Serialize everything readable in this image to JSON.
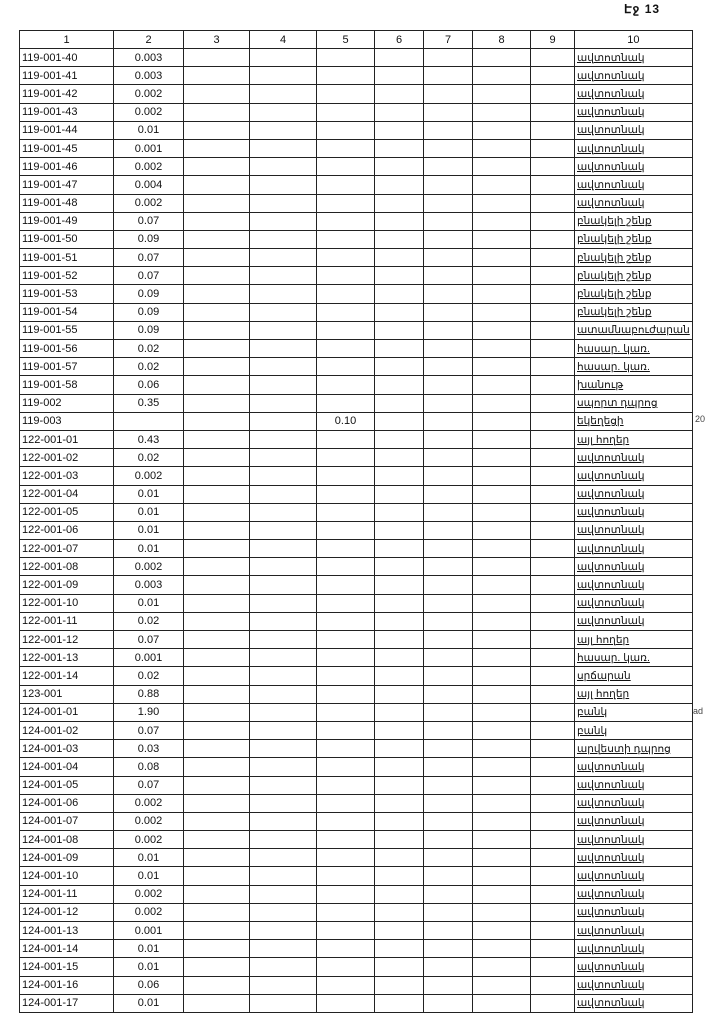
{
  "page_label": "Էջ 13",
  "margin_notes": [
    "20",
    "ad"
  ],
  "table": {
    "headers": [
      "1",
      "2",
      "3",
      "4",
      "5",
      "6",
      "7",
      "8",
      "9",
      "10"
    ],
    "rows": [
      [
        "119-001-40",
        "0.003",
        "",
        "",
        "",
        "",
        "",
        "",
        "",
        "ավտոտնակ"
      ],
      [
        "119-001-41",
        "0.003",
        "",
        "",
        "",
        "",
        "",
        "",
        "",
        "ավտոտնակ"
      ],
      [
        "119-001-42",
        "0.002",
        "",
        "",
        "",
        "",
        "",
        "",
        "",
        "ավտոտնակ"
      ],
      [
        "119-001-43",
        "0.002",
        "",
        "",
        "",
        "",
        "",
        "",
        "",
        "ավտոտնակ"
      ],
      [
        "119-001-44",
        "0.01",
        "",
        "",
        "",
        "",
        "",
        "",
        "",
        "ավտոտնակ"
      ],
      [
        "119-001-45",
        "0.001",
        "",
        "",
        "",
        "",
        "",
        "",
        "",
        "ավտոտնակ"
      ],
      [
        "119-001-46",
        "0.002",
        "",
        "",
        "",
        "",
        "",
        "",
        "",
        "ավտոտնակ"
      ],
      [
        "119-001-47",
        "0.004",
        "",
        "",
        "",
        "",
        "",
        "",
        "",
        "ավտոտնակ"
      ],
      [
        "119-001-48",
        "0.002",
        "",
        "",
        "",
        "",
        "",
        "",
        "",
        "ավտոտնակ"
      ],
      [
        "119-001-49",
        "0.07",
        "",
        "",
        "",
        "",
        "",
        "",
        "",
        "բնակելի շենք"
      ],
      [
        "119-001-50",
        "0.09",
        "",
        "",
        "",
        "",
        "",
        "",
        "",
        "բնակելի շենք"
      ],
      [
        "119-001-51",
        "0.07",
        "",
        "",
        "",
        "",
        "",
        "",
        "",
        "բնակելի շենք"
      ],
      [
        "119-001-52",
        "0.07",
        "",
        "",
        "",
        "",
        "",
        "",
        "",
        "բնակելի շենք"
      ],
      [
        "119-001-53",
        "0.09",
        "",
        "",
        "",
        "",
        "",
        "",
        "",
        "բնակելի շենք"
      ],
      [
        "119-001-54",
        "0.09",
        "",
        "",
        "",
        "",
        "",
        "",
        "",
        "բնակելի շենք"
      ],
      [
        "119-001-55",
        "0.09",
        "",
        "",
        "",
        "",
        "",
        "",
        "",
        "ատամնաբուժարան"
      ],
      [
        "119-001-56",
        "0.02",
        "",
        "",
        "",
        "",
        "",
        "",
        "",
        "հասար. կառ."
      ],
      [
        "119-001-57",
        "0.02",
        "",
        "",
        "",
        "",
        "",
        "",
        "",
        "հասար. կառ."
      ],
      [
        "119-001-58",
        "0.06",
        "",
        "",
        "",
        "",
        "",
        "",
        "",
        "խանութ"
      ],
      [
        "119-002",
        "0.35",
        "",
        "",
        "",
        "",
        "",
        "",
        "",
        "սպորտ դպրոց"
      ],
      [
        "119-003",
        "",
        "",
        "",
        "0.10",
        "",
        "",
        "",
        "",
        "եկեղեցի"
      ],
      [
        "122-001-01",
        "0.43",
        "",
        "",
        "",
        "",
        "",
        "",
        "",
        "այլ հողեր"
      ],
      [
        "122-001-02",
        "0.02",
        "",
        "",
        "",
        "",
        "",
        "",
        "",
        "ավտոտնակ"
      ],
      [
        "122-001-03",
        "0.002",
        "",
        "",
        "",
        "",
        "",
        "",
        "",
        "ավտոտնակ"
      ],
      [
        "122-001-04",
        "0.01",
        "",
        "",
        "",
        "",
        "",
        "",
        "",
        "ավտոտնակ"
      ],
      [
        "122-001-05",
        "0.01",
        "",
        "",
        "",
        "",
        "",
        "",
        "",
        "ավտոտնակ"
      ],
      [
        "122-001-06",
        "0.01",
        "",
        "",
        "",
        "",
        "",
        "",
        "",
        "ավտոտնակ"
      ],
      [
        "122-001-07",
        "0.01",
        "",
        "",
        "",
        "",
        "",
        "",
        "",
        "ավտոտնակ"
      ],
      [
        "122-001-08",
        "0.002",
        "",
        "",
        "",
        "",
        "",
        "",
        "",
        "ավտոտնակ"
      ],
      [
        "122-001-09",
        "0.003",
        "",
        "",
        "",
        "",
        "",
        "",
        "",
        "ավտոտնակ"
      ],
      [
        "122-001-10",
        "0.01",
        "",
        "",
        "",
        "",
        "",
        "",
        "",
        "ավտոտնակ"
      ],
      [
        "122-001-11",
        "0.02",
        "",
        "",
        "",
        "",
        "",
        "",
        "",
        "ավտոտնակ"
      ],
      [
        "122-001-12",
        "0.07",
        "",
        "",
        "",
        "",
        "",
        "",
        "",
        "այլ հողեր"
      ],
      [
        "122-001-13",
        "0.001",
        "",
        "",
        "",
        "",
        "",
        "",
        "",
        "հասար. կառ."
      ],
      [
        "122-001-14",
        "0.02",
        "",
        "",
        "",
        "",
        "",
        "",
        "",
        "սրճարան"
      ],
      [
        "123-001",
        "0.88",
        "",
        "",
        "",
        "",
        "",
        "",
        "",
        "այլ հողեր"
      ],
      [
        "124-001-01",
        "1.90",
        "",
        "",
        "",
        "",
        "",
        "",
        "",
        "բանկ"
      ],
      [
        "124-001-02",
        "0.07",
        "",
        "",
        "",
        "",
        "",
        "",
        "",
        "բանկ"
      ],
      [
        "124-001-03",
        "0.03",
        "",
        "",
        "",
        "",
        "",
        "",
        "",
        "արվեստի դպրոց"
      ],
      [
        "124-001-04",
        "0.08",
        "",
        "",
        "",
        "",
        "",
        "",
        "",
        "ավտոտնակ"
      ],
      [
        "124-001-05",
        "0.07",
        "",
        "",
        "",
        "",
        "",
        "",
        "",
        "ավտոտնակ"
      ],
      [
        "124-001-06",
        "0.002",
        "",
        "",
        "",
        "",
        "",
        "",
        "",
        "ավտոտնակ"
      ],
      [
        "124-001-07",
        "0.002",
        "",
        "",
        "",
        "",
        "",
        "",
        "",
        "ավտոտնակ"
      ],
      [
        "124-001-08",
        "0.002",
        "",
        "",
        "",
        "",
        "",
        "",
        "",
        "ավտոտնակ"
      ],
      [
        "124-001-09",
        "0.01",
        "",
        "",
        "",
        "",
        "",
        "",
        "",
        "ավտոտնակ"
      ],
      [
        "124-001-10",
        "0.01",
        "",
        "",
        "",
        "",
        "",
        "",
        "",
        "ավտոտնակ"
      ],
      [
        "124-001-11",
        "0.002",
        "",
        "",
        "",
        "",
        "",
        "",
        "",
        "ավտոտնակ"
      ],
      [
        "124-001-12",
        "0.002",
        "",
        "",
        "",
        "",
        "",
        "",
        "",
        "ավտոտնակ"
      ],
      [
        "124-001-13",
        "0.001",
        "",
        "",
        "",
        "",
        "",
        "",
        "",
        "ավտոտնակ"
      ],
      [
        "124-001-14",
        "0.01",
        "",
        "",
        "",
        "",
        "",
        "",
        "",
        "ավտոտնակ"
      ],
      [
        "124-001-15",
        "0.01",
        "",
        "",
        "",
        "",
        "",
        "",
        "",
        "ավտոտնակ"
      ],
      [
        "124-001-16",
        "0.06",
        "",
        "",
        "",
        "",
        "",
        "",
        "",
        "ավտոտնակ"
      ],
      [
        "124-001-17",
        "0.01",
        "",
        "",
        "",
        "",
        "",
        "",
        "",
        "ավտոտնակ"
      ]
    ]
  }
}
